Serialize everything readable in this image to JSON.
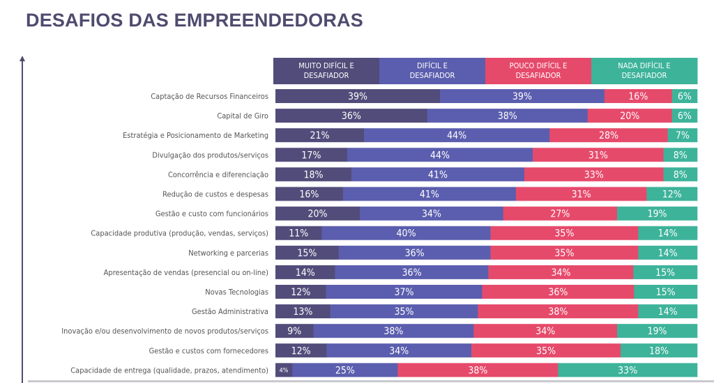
{
  "chart_data": {
    "type": "bar",
    "orientation": "horizontal",
    "stacked": true,
    "title": "DESAFIOS DAS EMPREENDEDORAS",
    "legend_placement": "top",
    "series": [
      {
        "name": "MUITO DIFÍCIL E DESAFIADOR",
        "color": "#524c7a",
        "values": [
          39,
          36,
          21,
          17,
          18,
          16,
          20,
          11,
          15,
          14,
          12,
          13,
          9,
          12,
          4
        ]
      },
      {
        "name": "DIFÍCIL E DESAFIADOR",
        "color": "#5b5eae",
        "values": [
          39,
          38,
          44,
          44,
          41,
          41,
          34,
          40,
          36,
          36,
          37,
          35,
          38,
          34,
          25
        ]
      },
      {
        "name": "POUCO DIFÍCIL E DESAFIADOR",
        "color": "#e64a6b",
        "values": [
          16,
          20,
          28,
          31,
          33,
          31,
          27,
          35,
          35,
          34,
          36,
          38,
          34,
          35,
          38
        ]
      },
      {
        "name": "NADA DIFÍCIL E DESAFIADOR",
        "color": "#3db39a",
        "values": [
          6,
          6,
          7,
          8,
          8,
          12,
          19,
          14,
          14,
          15,
          15,
          14,
          19,
          18,
          33
        ]
      }
    ],
    "categories": [
      "Captação de Recursos Financeiros",
      "Capital de Giro",
      "Estratégia e Posicionamento de Marketing",
      "Divulgação dos produtos/serviços",
      "Concorrência e diferenciação",
      "Redução de custos e despesas",
      "Gestão e custo com funcionários",
      "Capacidade produtiva (produção, vendas, serviços)",
      "Networking e parcerias",
      "Apresentação de vendas (presencial ou on-line)",
      "Novas Tecnologias",
      "Gestão Administrativa",
      "Inovação e/ou desenvolvimento de novos produtos/serviços",
      "Gestão e custos com fornecedores",
      "Capacidade de entrega (qualidade, prazos, atendimento)"
    ],
    "value_suffix": "%"
  }
}
